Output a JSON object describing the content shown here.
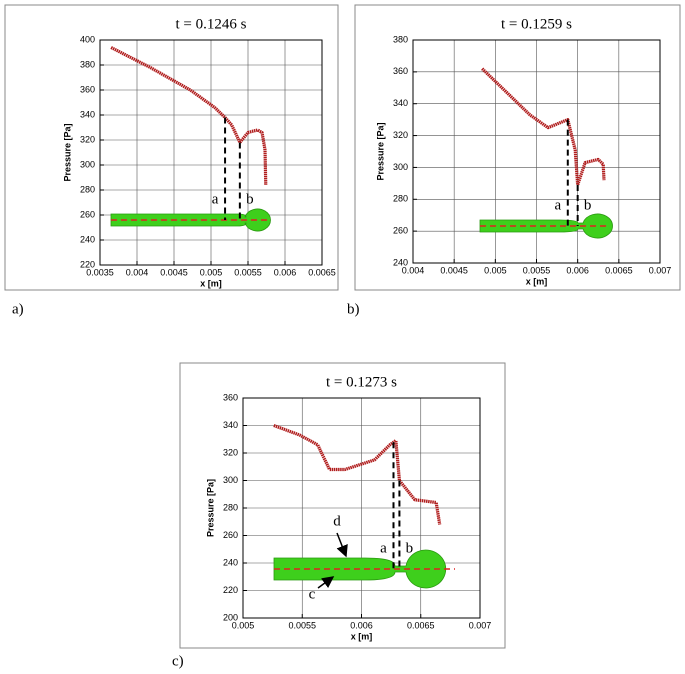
{
  "chart_data": [
    {
      "type": "line",
      "title": "t = 0.1246 s",
      "panel_label": "a)",
      "x_label": "x [m]",
      "y_label": "Pressure [Pa]",
      "xlim": [
        0.0035,
        0.0065
      ],
      "xticks": [
        0.0035,
        0.004,
        0.0045,
        0.005,
        0.0055,
        0.006,
        0.0065
      ],
      "ylim": [
        220,
        400
      ],
      "yticks": [
        220,
        240,
        260,
        280,
        300,
        320,
        340,
        360,
        380,
        400
      ],
      "grid": true,
      "color": "#b01c1c",
      "x": [
        0.00365,
        0.00418,
        0.00472,
        0.00505,
        0.00519,
        0.00528,
        0.00539,
        0.0055,
        0.00563,
        0.00569,
        0.00573,
        0.00574
      ],
      "values": [
        394,
        378,
        360,
        346,
        338,
        332,
        318,
        326,
        328,
        326,
        312,
        284
      ],
      "markers": [
        {
          "label": "a",
          "x": 0.00519
        },
        {
          "label": "b",
          "x": 0.00539
        }
      ]
    },
    {
      "type": "line",
      "title": "t = 0.1259 s",
      "panel_label": "b)",
      "x_label": "x [m]",
      "y_label": "Pressure [Pa]",
      "xlim": [
        0.004,
        0.007
      ],
      "xticks": [
        0.004,
        0.0045,
        0.005,
        0.0055,
        0.006,
        0.0065,
        0.007
      ],
      "ylim": [
        240,
        380
      ],
      "yticks": [
        240,
        260,
        280,
        300,
        320,
        340,
        360,
        380
      ],
      "grid": true,
      "color": "#b01c1c",
      "x": [
        0.00484,
        0.00518,
        0.00542,
        0.00564,
        0.00588,
        0.00597,
        0.006,
        0.00609,
        0.00625,
        0.00631,
        0.00632
      ],
      "values": [
        362,
        345,
        333,
        325,
        330,
        311,
        289,
        303,
        305,
        302,
        292
      ],
      "markers": [
        {
          "label": "a",
          "x": 0.00588
        },
        {
          "label": "b",
          "x": 0.006
        }
      ]
    },
    {
      "type": "line",
      "title": "t = 0.1273 s",
      "panel_label": "c)",
      "x_label": "x [m]",
      "y_label": "Pressure [Pa]",
      "xlim": [
        0.005,
        0.007
      ],
      "xticks": [
        0.005,
        0.0055,
        0.006,
        0.0065,
        0.007
      ],
      "ylim": [
        200,
        360
      ],
      "yticks": [
        200,
        220,
        240,
        260,
        280,
        300,
        320,
        340,
        360
      ],
      "grid": true,
      "color": "#b01c1c",
      "x": [
        0.00526,
        0.00548,
        0.00563,
        0.00573,
        0.00586,
        0.00611,
        0.00624,
        0.00629,
        0.00632,
        0.00645,
        0.00663,
        0.00666
      ],
      "values": [
        340,
        333,
        326,
        308,
        308,
        315,
        326,
        329,
        300,
        286,
        284,
        268
      ],
      "markers": [
        {
          "label": "a",
          "x": 0.00627
        },
        {
          "label": "b",
          "x": 0.00632
        }
      ],
      "annotations": [
        "d",
        "c"
      ]
    }
  ]
}
